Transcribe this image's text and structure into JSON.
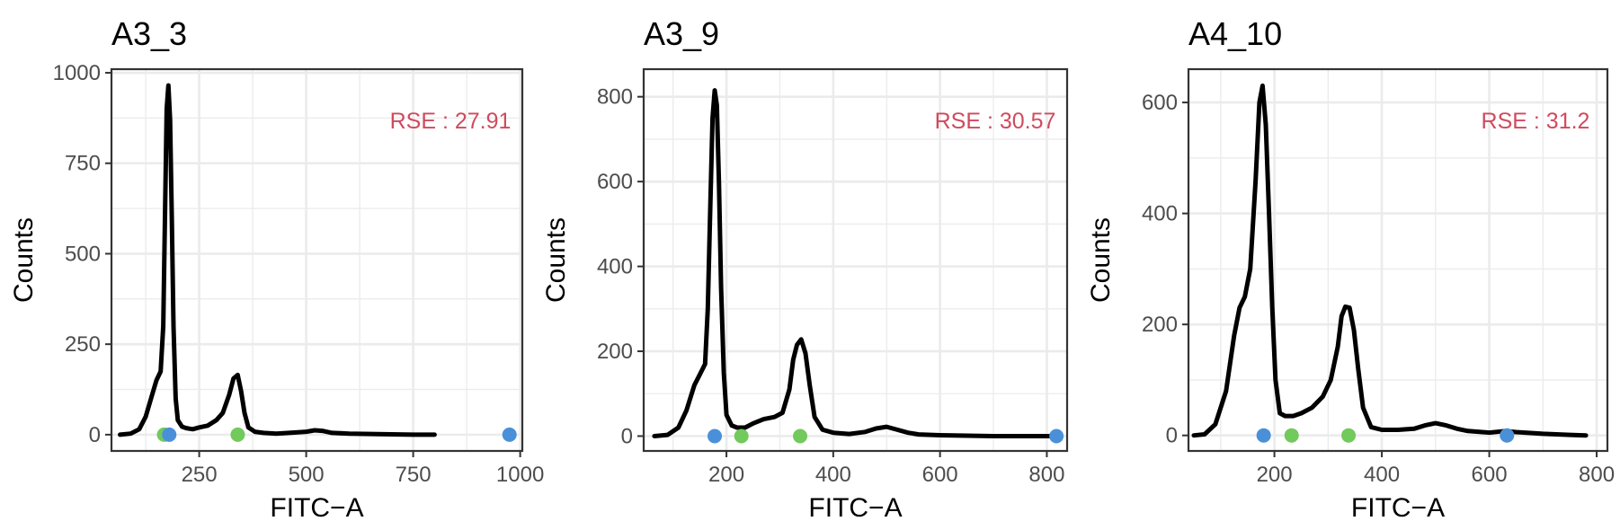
{
  "figure": {
    "x_axis_label": "FITC−A",
    "y_axis_label": "Counts"
  },
  "colors": {
    "curve": "#000000",
    "blue_point": "#4a90d9",
    "green_point": "#72c95c",
    "rse_text": "#d14a5e",
    "grid": "#ebebeb",
    "panel_border": "#333333",
    "tick_text": "#4d4d4d"
  },
  "chart_data": [
    {
      "type": "line",
      "title": "A3_3",
      "xlabel": "FITC−A",
      "ylabel": "Counts",
      "xlim": [
        45,
        1005
      ],
      "ylim": [
        -45,
        1010
      ],
      "x_ticks": [
        250,
        500,
        750,
        1000
      ],
      "x_tick_labels": [
        "250",
        "500",
        "750",
        "1000"
      ],
      "y_ticks": [
        0,
        250,
        500,
        750,
        1000
      ],
      "y_tick_labels": [
        "0",
        "250",
        "500",
        "750",
        "1000"
      ],
      "annotation": "RSE : 27.91",
      "grid": true,
      "series": [
        {
          "x": [
            65,
            90,
            110,
            125,
            140,
            150,
            160,
            166,
            170,
            174,
            178,
            182,
            186,
            190,
            195,
            200,
            210,
            220,
            235,
            250,
            270,
            290,
            305,
            320,
            330,
            340,
            348,
            356,
            365,
            380,
            400,
            430,
            460,
            500,
            520,
            540,
            560,
            600,
            650,
            700,
            750,
            800
          ],
          "y": [
            0,
            3,
            15,
            50,
            110,
            150,
            175,
            300,
            600,
            900,
            965,
            870,
            600,
            300,
            100,
            40,
            22,
            18,
            15,
            20,
            25,
            40,
            60,
            110,
            155,
            165,
            120,
            60,
            20,
            8,
            5,
            3,
            5,
            8,
            12,
            10,
            5,
            3,
            2,
            1,
            0,
            0
          ]
        }
      ],
      "points": [
        {
          "x": 168,
          "y": 0,
          "color": "green"
        },
        {
          "x": 180,
          "y": 0,
          "color": "blue"
        },
        {
          "x": 340,
          "y": 0,
          "color": "green"
        },
        {
          "x": 975,
          "y": 0,
          "color": "blue"
        }
      ]
    },
    {
      "type": "line",
      "title": "A3_9",
      "xlabel": "FITC−A",
      "ylabel": "Counts",
      "xlim": [
        45,
        838
      ],
      "ylim": [
        -35,
        865
      ],
      "x_ticks": [
        200,
        400,
        600,
        800
      ],
      "x_tick_labels": [
        "200",
        "400",
        "600",
        "800"
      ],
      "y_ticks": [
        0,
        200,
        400,
        600,
        800
      ],
      "y_tick_labels": [
        "0",
        "200",
        "400",
        "600",
        "800"
      ],
      "annotation": "RSE : 30.57",
      "grid": true,
      "series": [
        {
          "x": [
            65,
            90,
            110,
            125,
            140,
            150,
            160,
            165,
            170,
            174,
            178,
            182,
            186,
            190,
            195,
            200,
            210,
            220,
            235,
            250,
            270,
            290,
            305,
            318,
            325,
            332,
            340,
            348,
            356,
            365,
            380,
            400,
            430,
            460,
            480,
            500,
            520,
            540,
            560,
            600,
            650,
            700,
            750,
            800,
            818
          ],
          "y": [
            0,
            3,
            20,
            60,
            120,
            145,
            170,
            300,
            550,
            750,
            815,
            780,
            600,
            350,
            150,
            50,
            25,
            20,
            20,
            30,
            40,
            45,
            55,
            110,
            180,
            215,
            228,
            195,
            120,
            45,
            15,
            8,
            5,
            10,
            18,
            22,
            15,
            8,
            4,
            2,
            1,
            0,
            0,
            0,
            0
          ]
        }
      ],
      "points": [
        {
          "x": 178,
          "y": 0,
          "color": "blue"
        },
        {
          "x": 228,
          "y": 0,
          "color": "green"
        },
        {
          "x": 338,
          "y": 0,
          "color": "green"
        },
        {
          "x": 818,
          "y": 0,
          "color": "blue"
        }
      ]
    },
    {
      "type": "line",
      "title": "A4_10",
      "xlabel": "FITC−A",
      "ylabel": "Counts",
      "xlim": [
        40,
        820
      ],
      "ylim": [
        -28,
        660
      ],
      "x_ticks": [
        200,
        400,
        600,
        800
      ],
      "x_tick_labels": [
        "200",
        "400",
        "600",
        "800"
      ],
      "y_ticks": [
        0,
        200,
        400,
        600
      ],
      "y_tick_labels": [
        "0",
        "200",
        "400",
        "600"
      ],
      "annotation": "RSE : 31.2",
      "grid": true,
      "series": [
        {
          "x": [
            50,
            70,
            90,
            110,
            125,
            135,
            145,
            155,
            165,
            172,
            178,
            184,
            190,
            196,
            202,
            210,
            220,
            235,
            250,
            270,
            290,
            305,
            318,
            325,
            332,
            340,
            348,
            356,
            365,
            380,
            400,
            430,
            460,
            480,
            500,
            520,
            540,
            560,
            600,
            630,
            650,
            700,
            750,
            780
          ],
          "y": [
            0,
            2,
            20,
            80,
            180,
            230,
            250,
            300,
            460,
            600,
            630,
            560,
            400,
            230,
            100,
            40,
            35,
            35,
            40,
            50,
            70,
            100,
            160,
            215,
            232,
            230,
            190,
            120,
            50,
            15,
            10,
            10,
            12,
            18,
            22,
            18,
            12,
            8,
            5,
            8,
            6,
            3,
            1,
            0
          ]
        }
      ],
      "points": [
        {
          "x": 180,
          "y": 0,
          "color": "blue"
        },
        {
          "x": 232,
          "y": 0,
          "color": "green"
        },
        {
          "x": 338,
          "y": 0,
          "color": "green"
        },
        {
          "x": 633,
          "y": 0,
          "color": "blue"
        }
      ]
    }
  ]
}
